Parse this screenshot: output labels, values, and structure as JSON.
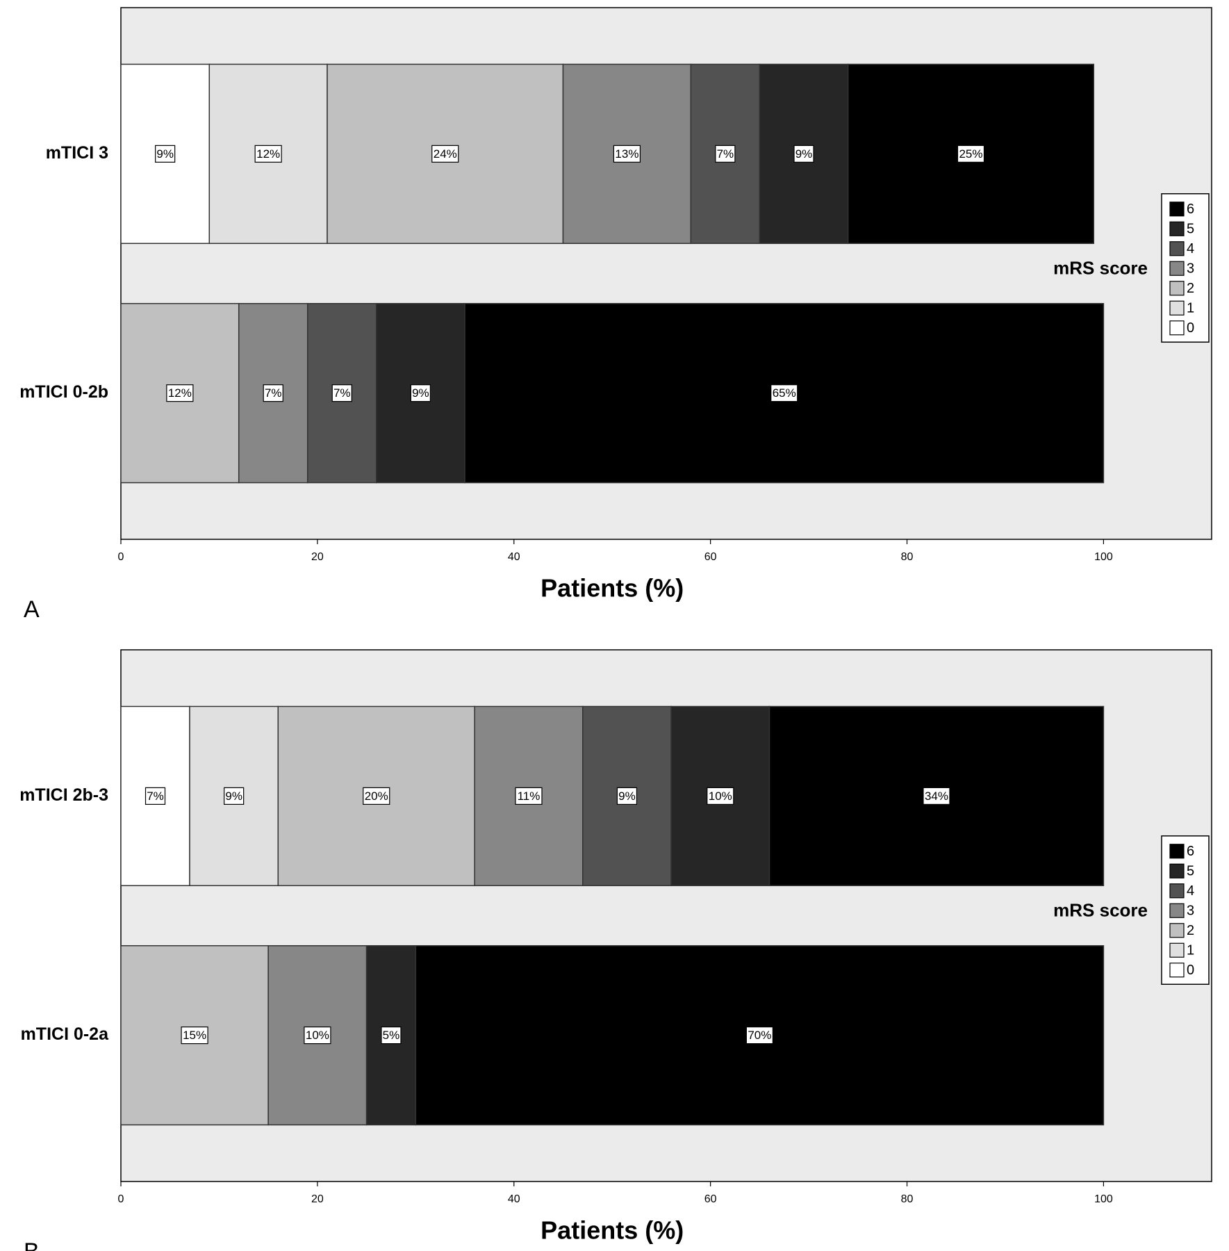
{
  "chart_data": [
    {
      "type": "bar",
      "orientation": "horizontal",
      "stacked": true,
      "panel_label": "A",
      "categories": [
        "mTICI 3",
        "mTICI 0-2b"
      ],
      "series": [
        {
          "name": "0",
          "color": "#ffffff",
          "values": [
            9,
            null
          ],
          "value_labels": [
            "9%",
            null
          ]
        },
        {
          "name": "1",
          "color": "#e0e0e0",
          "values": [
            12,
            null
          ],
          "value_labels": [
            "12%",
            null
          ]
        },
        {
          "name": "2",
          "color": "#c0c0c0",
          "values": [
            24,
            12
          ],
          "value_labels": [
            "24%",
            "12%"
          ]
        },
        {
          "name": "3",
          "color": "#878787",
          "values": [
            13,
            7
          ],
          "value_labels": [
            "13%",
            "7%"
          ]
        },
        {
          "name": "4",
          "color": "#525252",
          "values": [
            7,
            7
          ],
          "value_labels": [
            "7%",
            "7%"
          ]
        },
        {
          "name": "5",
          "color": "#262626",
          "values": [
            9,
            9
          ],
          "value_labels": [
            "9%",
            "9%"
          ]
        },
        {
          "name": "6",
          "color": "#000000",
          "values": [
            25,
            65
          ],
          "value_labels": [
            "25%",
            "65%"
          ]
        }
      ],
      "xlim": [
        0,
        111
      ],
      "xticks": [
        0,
        20,
        40,
        60,
        80,
        100
      ],
      "xlabel": "Patients (%)",
      "legend_title": "mRS score",
      "legend": "right"
    },
    {
      "type": "bar",
      "orientation": "horizontal",
      "stacked": true,
      "panel_label": "B",
      "categories": [
        "mTICI 2b-3",
        "mTICI 0-2a"
      ],
      "series": [
        {
          "name": "0",
          "color": "#ffffff",
          "values": [
            7,
            null
          ],
          "value_labels": [
            "7%",
            null
          ]
        },
        {
          "name": "1",
          "color": "#e0e0e0",
          "values": [
            9,
            null
          ],
          "value_labels": [
            "9%",
            null
          ]
        },
        {
          "name": "2",
          "color": "#c0c0c0",
          "values": [
            20,
            15
          ],
          "value_labels": [
            "20%",
            "15%"
          ]
        },
        {
          "name": "3",
          "color": "#878787",
          "values": [
            11,
            10
          ],
          "value_labels": [
            "11%",
            "10%"
          ]
        },
        {
          "name": "4",
          "color": "#525252",
          "values": [
            9,
            null
          ],
          "value_labels": [
            "9%",
            null
          ]
        },
        {
          "name": "5",
          "color": "#262626",
          "values": [
            10,
            5
          ],
          "value_labels": [
            "10%",
            "5%"
          ]
        },
        {
          "name": "6",
          "color": "#000000",
          "values": [
            34,
            70
          ],
          "value_labels": [
            "34%",
            "70%"
          ]
        }
      ],
      "xlim": [
        0,
        111
      ],
      "xticks": [
        0,
        20,
        40,
        60,
        80,
        100
      ],
      "xlabel": "Patients (%)",
      "legend_title": "mRS score",
      "legend": "right"
    }
  ]
}
